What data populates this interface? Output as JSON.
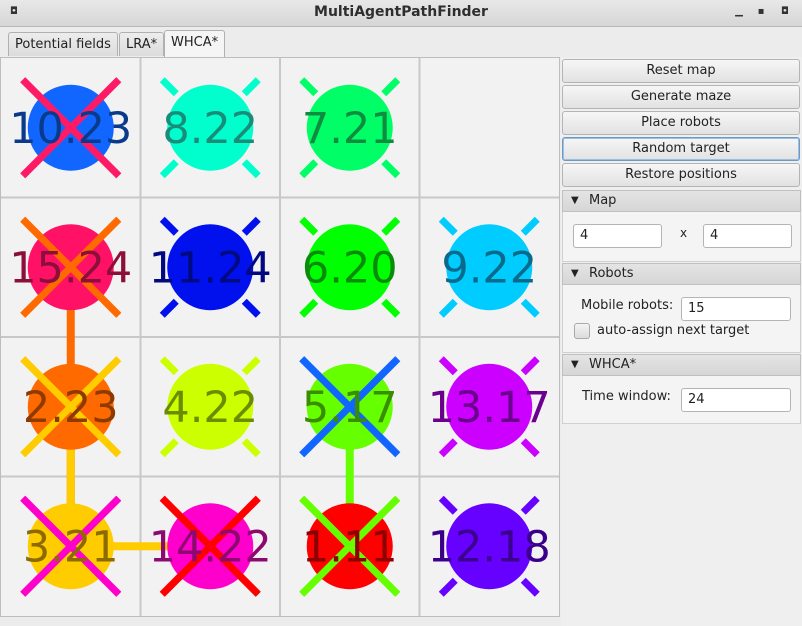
{
  "window": {
    "title": "MultiAgentPathFinder"
  },
  "tabs": [
    {
      "label": "Potential fields"
    },
    {
      "label": "LRA*"
    },
    {
      "label": "WHCA*"
    }
  ],
  "buttons": {
    "reset_map": "Reset map",
    "generate_maze": "Generate maze",
    "place_robots": "Place robots",
    "random_target": "Random target",
    "restore_positions": "Restore positions"
  },
  "map_section": {
    "title": "Map",
    "width": "4",
    "x": "x",
    "height": "4"
  },
  "robots_section": {
    "title": "Robots",
    "mobile_label": "Mobile robots:",
    "mobile_value": "15",
    "auto_assign_label": "auto-assign next target",
    "auto_assign_checked": false
  },
  "whca_section": {
    "title": "WHCA*",
    "time_window_label": "Time window:",
    "time_window_value": "24"
  },
  "grid": {
    "rows": 4,
    "cols": 4,
    "robots": [
      {
        "label": "10.23",
        "row": 0,
        "col": 0,
        "color": "#1166ff",
        "text_color": "#0a3a8c",
        "target_color": "#ff1a66"
      },
      {
        "label": "8.22",
        "row": 0,
        "col": 1,
        "color": "#00ffcc",
        "text_color": "#1a8c7a",
        "target_color": "#00ffcc"
      },
      {
        "label": "7.21",
        "row": 0,
        "col": 2,
        "color": "#00ff66",
        "text_color": "#108c40",
        "target_color": "#00ff66"
      },
      {
        "label": "15.24",
        "row": 1,
        "col": 0,
        "color": "#ff1166",
        "text_color": "#8c0f3a",
        "target_color": "#ff6a00"
      },
      {
        "label": "11.24",
        "row": 1,
        "col": 1,
        "color": "#0011ee",
        "text_color": "#000a80",
        "target_color": "#0011ee"
      },
      {
        "label": "6.20",
        "row": 1,
        "col": 2,
        "color": "#00ff00",
        "text_color": "#0a8c0a",
        "target_color": "#00ff00"
      },
      {
        "label": "9.22",
        "row": 1,
        "col": 3,
        "color": "#00ccff",
        "text_color": "#0a6a8c",
        "target_color": "#00ccff"
      },
      {
        "label": "2.23",
        "row": 2,
        "col": 0,
        "color": "#ff6a00",
        "text_color": "#8c3a00",
        "target_color": "#ffcc00"
      },
      {
        "label": "4.22",
        "row": 2,
        "col": 1,
        "color": "#ccff00",
        "text_color": "#6a8c00",
        "target_color": "#ccff00"
      },
      {
        "label": "5.17",
        "row": 2,
        "col": 2,
        "color": "#66ff00",
        "text_color": "#3a8c00",
        "target_color": "#1166ff"
      },
      {
        "label": "13.17",
        "row": 2,
        "col": 3,
        "color": "#cc00ff",
        "text_color": "#6a008c",
        "target_color": "#cc00ff"
      },
      {
        "label": "3.21",
        "row": 3,
        "col": 0,
        "color": "#ffcc00",
        "text_color": "#8c6a00",
        "target_color": "#ff00cc"
      },
      {
        "label": "14.22",
        "row": 3,
        "col": 1,
        "color": "#ff00cc",
        "text_color": "#8c0a70",
        "target_color": "#ff0000"
      },
      {
        "label": "1.11",
        "row": 3,
        "col": 2,
        "color": "#ff0000",
        "text_color": "#8c0000",
        "target_color": "#66ff00"
      },
      {
        "label": "12.18",
        "row": 3,
        "col": 3,
        "color": "#6600ff",
        "text_color": "#3a008c",
        "target_color": "#6600ff"
      }
    ],
    "paths": [
      {
        "color": "#ff6a00",
        "from": [
          1,
          0
        ],
        "to": [
          3,
          0
        ]
      },
      {
        "color": "#ffcc00",
        "from": [
          2,
          0
        ],
        "to": [
          3,
          1
        ],
        "via": [
          3,
          0
        ]
      },
      {
        "color": "#66ff00",
        "from": [
          2,
          2
        ],
        "to": [
          3,
          2
        ]
      }
    ]
  }
}
